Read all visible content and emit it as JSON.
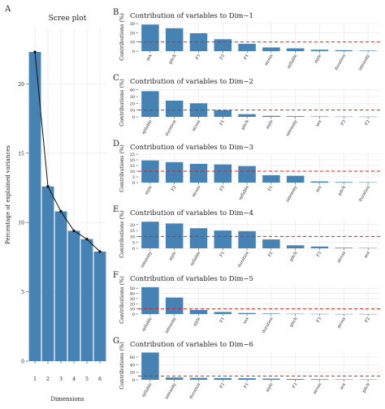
{
  "colors": {
    "bar": "#4682b4",
    "line": "#111111",
    "threshold": "#e0231b",
    "grid": "#e6e6e6",
    "text": "#222222"
  },
  "chart_data": [
    {
      "type": "bar",
      "panel_label": "A",
      "title": "Scree plot",
      "xlabel": "Dimensions",
      "ylabel": "Percentage of explained variances",
      "categories": [
        "1",
        "2",
        "3",
        "4",
        "5",
        "6"
      ],
      "values": [
        22.3,
        12.6,
        10.8,
        9.4,
        8.8,
        7.9
      ],
      "yticks": [
        "0",
        "5",
        "10",
        "15",
        "20"
      ],
      "ylim": [
        0,
        24
      ],
      "overlay": "line with points",
      "grid": true
    },
    {
      "type": "bar",
      "panel_label": "B",
      "title": "Contribution of variables to Dim−1",
      "ylabel": "Contributions (%)",
      "categories": [
        "sex",
        "pitch",
        "F3",
        "F2",
        "F1",
        "stress",
        "syllable",
        "style",
        "duration",
        "intensity"
      ],
      "values": [
        29.0,
        25.0,
        19.5,
        13.0,
        8.0,
        4.0,
        3.0,
        1.5,
        1.0,
        0.5
      ],
      "yticks": [
        "0",
        "10",
        "20",
        "30"
      ],
      "ylim": [
        0,
        31
      ],
      "threshold": 10,
      "grid": true
    },
    {
      "type": "bar",
      "panel_label": "C",
      "title": "Contribution of variables to Dim−2",
      "ylabel": "Contributions (%)",
      "categories": [
        "syllable",
        "duration",
        "stress",
        "F1",
        "pitch",
        "style",
        "intensity",
        "sex",
        "F3",
        "F2"
      ],
      "values": [
        38.0,
        24.0,
        20.0,
        10.0,
        4.0,
        1.5,
        1.0,
        0.6,
        0.4,
        0.3
      ],
      "yticks": [
        "0",
        "10",
        "20",
        "30",
        "40"
      ],
      "ylim": [
        0,
        42
      ],
      "threshold": 10,
      "grid": true
    },
    {
      "type": "bar",
      "panel_label": "D",
      "title": "Contribution of variables to Dim−3",
      "ylabel": "Contributions (%)",
      "categories": [
        "style",
        "F2",
        "stress",
        "F3",
        "syllable",
        "F1",
        "intensity",
        "sex",
        "pitch",
        "duration"
      ],
      "values": [
        19.5,
        18.0,
        16.5,
        16.0,
        14.5,
        6.5,
        6.0,
        1.0,
        0.5,
        0.3
      ],
      "yticks": [
        "0",
        "5",
        "10",
        "15",
        "20",
        "25"
      ],
      "ylim": [
        0,
        25
      ],
      "threshold": 10,
      "grid": true
    },
    {
      "type": "bar",
      "panel_label": "E",
      "title": "Contribution of variables to Dim−4",
      "ylabel": "Contributions (%)",
      "categories": [
        "intensity",
        "style",
        "syllable",
        "F1",
        "duration",
        "F2",
        "pitch",
        "F3",
        "stress",
        "sex"
      ],
      "values": [
        22.5,
        21.0,
        17.0,
        15.0,
        14.5,
        7.5,
        2.5,
        1.5,
        0.5,
        0.3
      ],
      "yticks": [
        "0",
        "5",
        "10",
        "15",
        "20"
      ],
      "ylim": [
        0,
        24
      ],
      "threshold": 10,
      "grid": true
    },
    {
      "type": "bar",
      "panel_label": "F",
      "title": "Contribution of variables to Dim−5",
      "ylabel": "Contributions (%)",
      "categories": [
        "syllable",
        "intensity",
        "style",
        "F1",
        "sex",
        "duration",
        "pitch",
        "F3",
        "stress",
        "F2"
      ],
      "values": [
        52.0,
        32.0,
        8.0,
        4.0,
        2.0,
        1.0,
        0.5,
        0.3,
        0.2,
        0.1
      ],
      "yticks": [
        "0",
        "10",
        "20",
        "30",
        "40",
        "50"
      ],
      "ylim": [
        0,
        55
      ],
      "threshold": 10,
      "grid": true
    },
    {
      "type": "bar",
      "panel_label": "G",
      "title": "Contribution of variables to Dim−6",
      "ylabel": "Contributions (%)",
      "categories": [
        "syllable",
        "intensity",
        "duration",
        "F2",
        "F1",
        "style",
        "F3",
        "stress",
        "sex",
        "pitch"
      ],
      "values": [
        72.0,
        6.0,
        5.0,
        4.5,
        4.0,
        3.0,
        2.0,
        1.5,
        1.0,
        0.8
      ],
      "yticks": [
        "0",
        "20",
        "40",
        "60"
      ],
      "ylim": [
        0,
        75
      ],
      "threshold": 10,
      "grid": true
    }
  ]
}
